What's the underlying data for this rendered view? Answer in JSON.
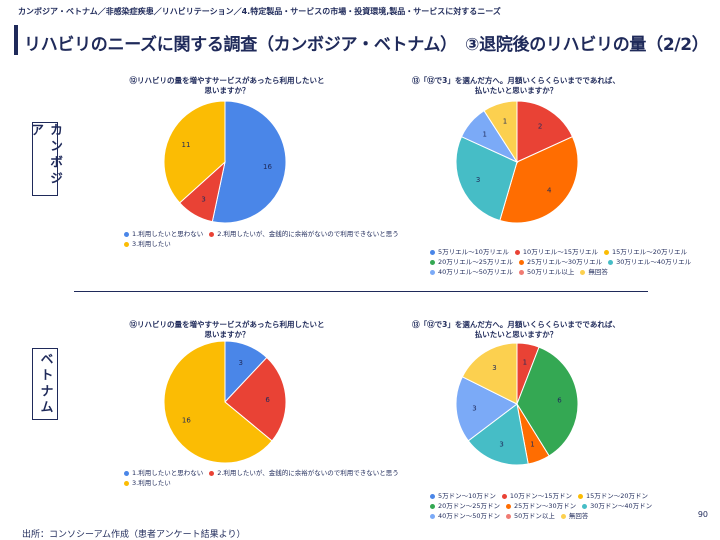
{
  "breadcrumb": "カンボジア・ベトナム／非感染症疾患／リハビリテーション／4.特定製品・サービスの市場・投資環境,製品・サービスに対するニーズ",
  "title": "リハビリのニーズに関する調査（カンボジア・ベトナム）　③退院後のリハビリの量（2/2）",
  "cambodia": {
    "label": "カンボジア",
    "q12": {
      "title_line1": "⑫リハビリの量を増やすサービスがあったら利用したいと",
      "title_line2": "思いますか？",
      "legend": [
        "1.利用したいと思わない",
        "2.利用したいが、金銭的に余裕がないので利用できないと思う",
        "3.利用したい"
      ]
    },
    "q13": {
      "title_line1": "⑬「⑫で3」を選んだ方へ。月額いくらくらいまでであれば、",
      "title_line2": "払いたいと思いますか？",
      "legend": [
        "5万リエル～10万リエル",
        "10万リエル～15万リエル",
        "15万リエル～20万リエル",
        "20万リエル～25万リエル",
        "25万リエル～30万リエル",
        "30万リエル～40万リエル",
        "40万リエル～50万リエル",
        "50万リエル以上",
        "無回答"
      ]
    }
  },
  "vietnam": {
    "label": "ベトナム",
    "q12": {
      "title_line1": "⑫リハビリの量を増やすサービスがあったら利用したいと",
      "title_line2": "思いますか？",
      "legend": [
        "1.利用したいと思わない",
        "2.利用したいが、金銭的に余裕がないので利用できないと思う",
        "3.利用したい"
      ]
    },
    "q13": {
      "title_line1": "⑬「⑫で3」を選んだ方へ。月額いくらくらいまでであれば、",
      "title_line2": "払いたいと思いますか？",
      "legend": [
        "5万ドン～10万ドン",
        "10万ドン～15万ドン",
        "15万ドン～20万ドン",
        "20万ドン～25万ドン",
        "25万ドン～30万ドン",
        "30万ドン～40万ドン",
        "40万ドン～50万ドン",
        "50万ドン以上",
        "無回答"
      ]
    }
  },
  "source": "出所：コンソシーアム作成（患者アンケート結果より）",
  "page_number": "90",
  "colors": {
    "navy": "#1f2a5a",
    "blue": "#4a86e8",
    "red": "#e94235",
    "yellow": "#fbbc04",
    "green": "#34a853",
    "orange": "#ff6d01",
    "teal": "#46bdc6",
    "lightblue": "#7baaf7",
    "pink": "#f07b72",
    "pale_yellow": "#fcd04f"
  },
  "chart_data": [
    {
      "type": "pie",
      "id": "cam_q12",
      "title": "⑫リハビリの量を増やすサービスがあったら利用したいと思いますか？",
      "categories": [
        "1.利用したいと思わない",
        "2.利用したいが、金銭的に余裕がないので利用できないと思う",
        "3.利用したい"
      ],
      "values": [
        16,
        3,
        11
      ],
      "colors": [
        "#4a86e8",
        "#e94235",
        "#fbbc04"
      ]
    },
    {
      "type": "pie",
      "id": "cam_q13",
      "title": "⑬「⑫で3」を選んだ方へ。月額いくらくらいまでであれば、払いたいと思いますか？",
      "categories": [
        "5万リエル～10万リエル",
        "10万リエル～15万リエル",
        "15万リエル～20万リエル",
        "20万リエル～25万リエル",
        "25万リエル～30万リエル",
        "30万リエル～40万リエル",
        "40万リエル～50万リエル",
        "50万リエル以上",
        "無回答"
      ],
      "values": [
        0,
        2,
        0,
        0,
        4,
        3,
        1,
        0,
        1
      ],
      "colors": [
        "#4a86e8",
        "#e94235",
        "#fbbc04",
        "#34a853",
        "#ff6d01",
        "#46bdc6",
        "#7baaf7",
        "#f07b72",
        "#fcd04f"
      ]
    },
    {
      "type": "pie",
      "id": "vn_q12",
      "title": "⑫リハビリの量を増やすサービスがあったら利用したいと思いますか？",
      "categories": [
        "1.利用したいと思わない",
        "2.利用したいが、金銭的に余裕がないので利用できないと思う",
        "3.利用したい"
      ],
      "values": [
        3,
        6,
        16
      ],
      "colors": [
        "#4a86e8",
        "#e94235",
        "#fbbc04"
      ]
    },
    {
      "type": "pie",
      "id": "vn_q13",
      "title": "⑬「⑫で3」を選んだ方へ。月額いくらくらいまでであれば、払いたいと思いますか？",
      "categories": [
        "5万ドン～10万ドン",
        "10万ドン～15万ドン",
        "15万ドン～20万ドン",
        "20万ドン～25万ドン",
        "25万ドン～30万ドン",
        "30万ドン～40万ドン",
        "40万ドン～50万ドン",
        "50万ドン以上",
        "無回答"
      ],
      "values": [
        0,
        1,
        0,
        6,
        1,
        3,
        3,
        0,
        3
      ],
      "colors": [
        "#4a86e8",
        "#e94235",
        "#fbbc04",
        "#34a853",
        "#ff6d01",
        "#46bdc6",
        "#7baaf7",
        "#f07b72",
        "#fcd04f"
      ]
    }
  ]
}
